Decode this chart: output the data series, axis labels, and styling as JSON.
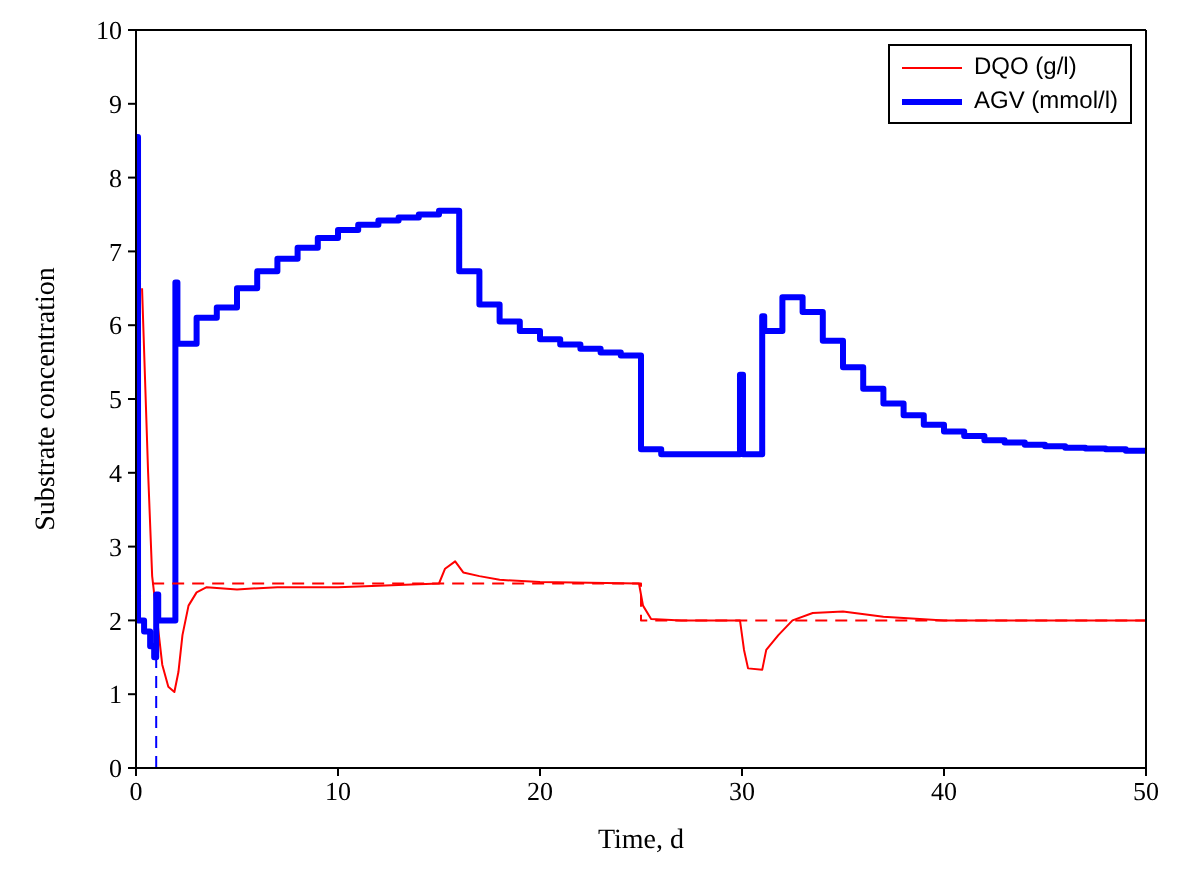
{
  "chart_data": {
    "type": "line",
    "xlabel": "Time, d",
    "ylabel": "Substrate concentration",
    "xlim": [
      0,
      50
    ],
    "xticks": [
      0,
      10,
      20,
      30,
      40,
      50
    ],
    "ylim": [
      0,
      10
    ],
    "yticks": [
      0,
      1,
      2,
      3,
      4,
      5,
      6,
      7,
      8,
      9,
      10
    ],
    "grid": false,
    "legend": "top right",
    "marker": "none",
    "series": [
      {
        "name": "DQO (g/l)",
        "color": "#ff0000",
        "type": "line",
        "line_style": "solid",
        "x": [
          0.3,
          0.6,
          0.8,
          1.3,
          1.6,
          1.9,
          2.1,
          2.3,
          2.6,
          3.0,
          3.5,
          5,
          7,
          10,
          13,
          15,
          15.3,
          15.8,
          16.2,
          17,
          18,
          20,
          24.9,
          25.1,
          25.5,
          27,
          29.9,
          30.1,
          30.3,
          31,
          31.2,
          31.8,
          32.5,
          33.5,
          35,
          37,
          40,
          50
        ],
        "values": [
          6.5,
          4.0,
          2.6,
          1.4,
          1.1,
          1.03,
          1.3,
          1.8,
          2.2,
          2.38,
          2.45,
          2.42,
          2.45,
          2.45,
          2.48,
          2.5,
          2.7,
          2.8,
          2.65,
          2.6,
          2.55,
          2.52,
          2.5,
          2.2,
          2.02,
          2.0,
          2.0,
          1.6,
          1.35,
          1.33,
          1.6,
          1.8,
          2.0,
          2.1,
          2.12,
          2.05,
          2.0,
          2.0
        ]
      },
      {
        "name": "AGV (mmol/l)",
        "color": "#0000ff",
        "type": "step",
        "line_style": "solid",
        "x": [
          0,
          0.1,
          0.4,
          0.7,
          0.9,
          1.0,
          1.1,
          1.95,
          2.05,
          3,
          4,
          5,
          6,
          7,
          8,
          9,
          10,
          11,
          12,
          13,
          14,
          15,
          16,
          17,
          18,
          19,
          20,
          21,
          22,
          23,
          24,
          25,
          26,
          29.9,
          30.05,
          31,
          31.1,
          32,
          33,
          34,
          35,
          36,
          37,
          38,
          39,
          40,
          41,
          42,
          43,
          44,
          45,
          46,
          47,
          48,
          49,
          50
        ],
        "values": [
          8.55,
          2.0,
          1.85,
          1.65,
          1.5,
          2.35,
          2.0,
          6.58,
          5.75,
          6.1,
          6.24,
          6.5,
          6.73,
          6.9,
          7.05,
          7.18,
          7.29,
          7.36,
          7.42,
          7.46,
          7.5,
          7.55,
          6.73,
          6.28,
          6.05,
          5.92,
          5.81,
          5.74,
          5.68,
          5.63,
          5.59,
          4.32,
          4.25,
          5.33,
          4.25,
          6.12,
          5.92,
          6.38,
          6.18,
          5.79,
          5.43,
          5.14,
          4.94,
          4.78,
          4.65,
          4.56,
          4.5,
          4.44,
          4.41,
          4.38,
          4.36,
          4.34,
          4.33,
          4.32,
          4.3,
          4.3
        ]
      },
      {
        "color": "#ff0000",
        "type": "line",
        "line_style": "dashed",
        "x": [
          0.8,
          25,
          25,
          50
        ],
        "values": [
          2.5,
          2.5,
          2.0,
          2.0
        ]
      },
      {
        "color": "#0000ff",
        "type": "line",
        "line_style": "dashed",
        "x": [
          1,
          1
        ],
        "values": [
          0,
          1.5
        ]
      }
    ]
  }
}
